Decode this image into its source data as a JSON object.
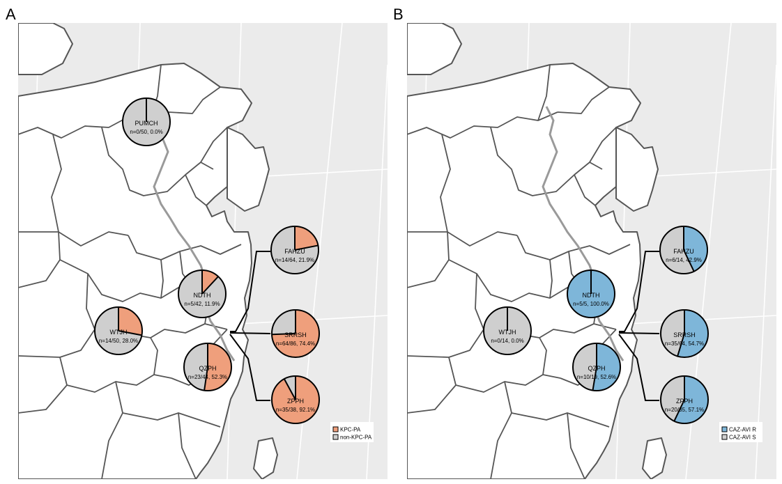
{
  "panels": [
    {
      "letter": "A",
      "legend": [
        {
          "label": "KPC-PA",
          "color": "#ef9f7c"
        },
        {
          "label": "non-KPC-PA",
          "color": "#cfcfcf"
        }
      ],
      "pies": [
        {
          "site": "PUMCH",
          "count": "n=0/50, 0.0%",
          "fraction": 0.0
        },
        {
          "site": "FAHZU",
          "count": "n=14/64, 21.9%",
          "fraction": 0.219
        },
        {
          "site": "NDTH",
          "count": "n=5/42, 11.9%",
          "fraction": 0.119
        },
        {
          "site": "WTJH",
          "count": "n=14/50, 28.0%",
          "fraction": 0.28
        },
        {
          "site": "SRRSH",
          "count": "n=64/86, 74.4%",
          "fraction": 0.744
        },
        {
          "site": "QZPH",
          "count": "n=23/44, 52.3%",
          "fraction": 0.523
        },
        {
          "site": "ZPPH",
          "count": "n=35/38, 92.1%",
          "fraction": 0.921
        }
      ]
    },
    {
      "letter": "B",
      "legend": [
        {
          "label": "CAZ-AVI R",
          "color": "#7eb6d9"
        },
        {
          "label": "CAZ-AVI S",
          "color": "#cfcfcf"
        }
      ],
      "pies": [
        {
          "site": "FAHZU",
          "count": "n=6/14, 42.9%",
          "fraction": 0.429
        },
        {
          "site": "NDTH",
          "count": "n=5/5, 100.0%",
          "fraction": 1.0
        },
        {
          "site": "WTJH",
          "count": "n=0/14, 0.0%",
          "fraction": 0.0
        },
        {
          "site": "SRRSH",
          "count": "n=35/64, 54.7%",
          "fraction": 0.547
        },
        {
          "site": "QZPH",
          "count": "n=10/19, 52.6%",
          "fraction": 0.526
        },
        {
          "site": "ZPPH",
          "count": "n=20/35, 57.1%",
          "fraction": 0.571
        }
      ]
    }
  ]
}
